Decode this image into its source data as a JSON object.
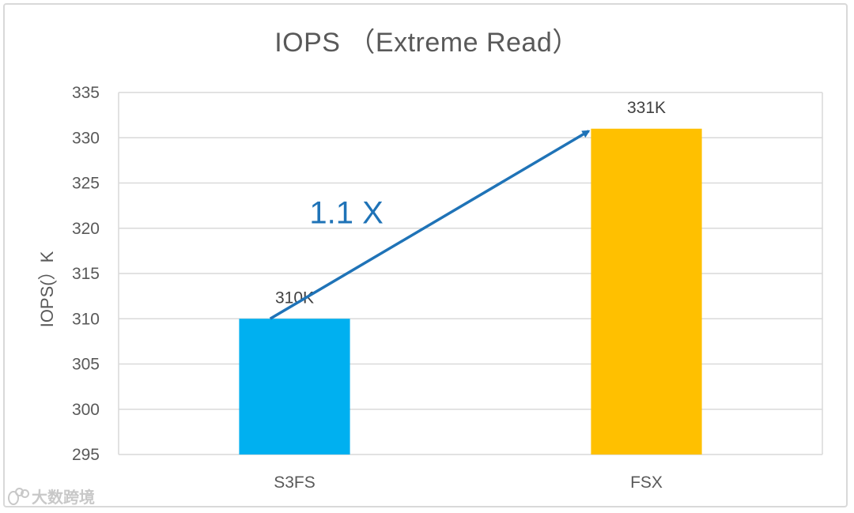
{
  "chart_data": {
    "type": "bar",
    "title": "IOPS （Extreme Read）",
    "ylabel": "IOPS(）K",
    "xlabel": "",
    "categories": [
      "S3FS",
      "FSX"
    ],
    "values": [
      310,
      331
    ],
    "data_labels": [
      "310K",
      "331K"
    ],
    "bar_colors": [
      "#00b0f0",
      "#ffc000"
    ],
    "ylim": [
      295,
      335
    ],
    "yticks": [
      295,
      300,
      305,
      310,
      315,
      320,
      325,
      330,
      335
    ],
    "grid": true,
    "annotation": {
      "text": "1.1 X",
      "color": "#1f73b7",
      "arrow_from": "S3FS",
      "arrow_to": "FSX"
    }
  },
  "watermark": {
    "text": "大数跨境",
    "icon": "logo-circles-icon"
  }
}
